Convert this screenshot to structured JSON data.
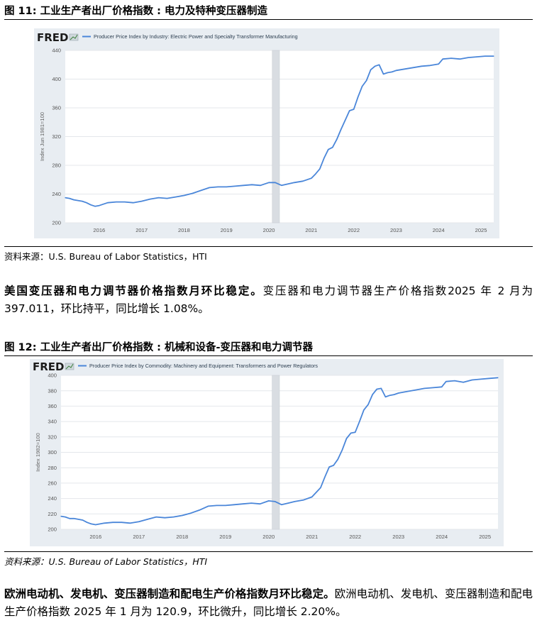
{
  "figures": [
    {
      "title": "图 11: 工业生产者出厂价格指数 : 电力及特种变压器制造",
      "source": "资料来源：U.S. Bureau of Labor Statistics，HTI"
    },
    {
      "title": "图 12: 工业生产者出厂价格指数 : 机械和设备-变压器和电力调节器",
      "source": "资料来源：U.S. Bureau of Labor Statistics，HTI"
    }
  ],
  "paragraphs": [
    {
      "bold": "美国变压器和电力调节器价格指数月环比稳定。",
      "text": "变压器和电力调节器生产价格指数2025 年 2 月为 397.011，环比持平，同比增长 1.08%。"
    },
    {
      "bold": "欧洲电动机、发电机、变压器制造和配电生产价格指数月环比稳定。",
      "text": "欧洲电动机、发电机、变压器制造和配电生产价格指数 2025 年 1 月为 120.9，环比微升，同比增长 2.20%。"
    }
  ],
  "colors": {
    "series": "#4a86d9",
    "recession": "#d9dde2",
    "plot_bg": "#ffffff",
    "panel_bg": "#e8edf2",
    "grid": "#e4e7eb"
  },
  "chart_data": [
    {
      "type": "line",
      "brand": "FRED",
      "title": "Producer Price Index by Industry: Electric Power and Specialty Transformer Manufacturing",
      "ylabel": "Index Jun 1981=100",
      "xlabel": "",
      "ylim": [
        200,
        440
      ],
      "yticks": [
        200,
        240,
        280,
        320,
        360,
        400,
        440
      ],
      "xlim": [
        2015.2,
        2025.3
      ],
      "xticks": [
        2016,
        2017,
        2018,
        2019,
        2020,
        2021,
        2022,
        2023,
        2024,
        2025
      ],
      "recession": [
        2020.08,
        2020.25
      ],
      "grid": true,
      "series": [
        {
          "x": [
            2015.2,
            2015.3,
            2015.4,
            2015.5,
            2015.6,
            2015.7,
            2015.8,
            2015.9,
            2016.0,
            2016.2,
            2016.4,
            2016.6,
            2016.8,
            2017.0,
            2017.2,
            2017.4,
            2017.6,
            2017.8,
            2018.0,
            2018.2,
            2018.4,
            2018.6,
            2018.8,
            2019.0,
            2019.2,
            2019.4,
            2019.6,
            2019.8,
            2020.0,
            2020.15,
            2020.3,
            2020.45,
            2020.6,
            2020.8,
            2021.0,
            2021.1,
            2021.2,
            2021.3,
            2021.4,
            2021.5,
            2021.6,
            2021.7,
            2021.8,
            2021.9,
            2022.0,
            2022.1,
            2022.2,
            2022.3,
            2022.4,
            2022.5,
            2022.6,
            2022.7,
            2022.8,
            2022.9,
            2023.0,
            2023.2,
            2023.4,
            2023.6,
            2023.8,
            2024.0,
            2024.1,
            2024.3,
            2024.5,
            2024.7,
            2024.9,
            2025.1,
            2025.3
          ],
          "y": [
            235,
            234,
            232,
            231,
            230,
            228,
            225,
            223,
            224,
            228,
            229,
            229,
            228,
            230,
            233,
            235,
            234,
            236,
            238,
            241,
            245,
            249,
            250,
            250,
            251,
            252,
            253,
            252,
            256,
            256,
            252,
            254,
            256,
            258,
            262,
            268,
            275,
            290,
            302,
            305,
            316,
            330,
            343,
            356,
            358,
            375,
            390,
            398,
            413,
            418,
            420,
            407,
            409,
            410,
            412,
            414,
            416,
            418,
            419,
            421,
            428,
            429,
            428,
            430,
            431,
            432,
            432
          ]
        }
      ]
    },
    {
      "type": "line",
      "brand": "FRED",
      "title": "Producer Price Index by Commodity: Machinery and Equipment: Transformers and Power Regulators",
      "ylabel": "Index 1982=100",
      "xlabel": "",
      "ylim": [
        200,
        400
      ],
      "yticks": [
        200,
        220,
        240,
        260,
        280,
        300,
        320,
        340,
        360,
        380,
        400
      ],
      "xlim": [
        2015.2,
        2025.3
      ],
      "xticks": [
        2016,
        2017,
        2018,
        2019,
        2020,
        2021,
        2022,
        2023,
        2024,
        2025
      ],
      "recession": [
        2020.08,
        2020.25
      ],
      "grid": true,
      "series": [
        {
          "x": [
            2015.2,
            2015.3,
            2015.4,
            2015.5,
            2015.6,
            2015.7,
            2015.8,
            2015.9,
            2016.0,
            2016.2,
            2016.4,
            2016.6,
            2016.8,
            2017.0,
            2017.2,
            2017.4,
            2017.6,
            2017.8,
            2018.0,
            2018.2,
            2018.4,
            2018.6,
            2018.8,
            2019.0,
            2019.2,
            2019.4,
            2019.6,
            2019.8,
            2020.0,
            2020.15,
            2020.3,
            2020.45,
            2020.6,
            2020.8,
            2021.0,
            2021.1,
            2021.2,
            2021.3,
            2021.4,
            2021.5,
            2021.6,
            2021.7,
            2021.8,
            2021.9,
            2022.0,
            2022.1,
            2022.2,
            2022.3,
            2022.4,
            2022.5,
            2022.6,
            2022.7,
            2022.8,
            2022.9,
            2023.0,
            2023.2,
            2023.4,
            2023.6,
            2023.8,
            2024.0,
            2024.1,
            2024.3,
            2024.5,
            2024.7,
            2024.9,
            2025.1,
            2025.3
          ],
          "y": [
            217,
            216,
            214,
            214,
            213,
            212,
            209,
            207,
            206,
            208,
            209,
            209,
            208,
            210,
            213,
            216,
            215,
            216,
            218,
            221,
            225,
            230,
            231,
            231,
            232,
            233,
            234,
            233,
            237,
            236,
            232,
            234,
            236,
            238,
            242,
            248,
            254,
            268,
            281,
            283,
            291,
            303,
            318,
            325,
            326,
            340,
            355,
            362,
            375,
            382,
            383,
            372,
            374,
            375,
            377,
            379,
            381,
            383,
            384,
            385,
            392,
            393,
            391,
            394,
            395,
            396,
            397
          ]
        }
      ]
    }
  ]
}
